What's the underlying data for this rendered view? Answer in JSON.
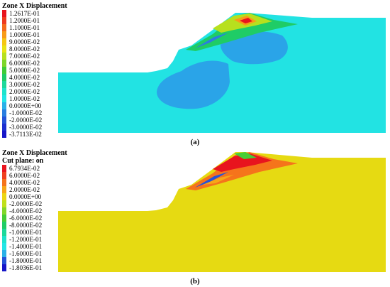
{
  "panel_a": {
    "title": "Zone X Displacement",
    "legend": [
      {
        "label": "1.2617E-01",
        "color": "#e8141e"
      },
      {
        "label": "1.2000E-01",
        "color": "#ee3a1f"
      },
      {
        "label": "1.1000E-01",
        "color": "#f46a1c"
      },
      {
        "label": "1.0000E-01",
        "color": "#f89b18"
      },
      {
        "label": "9.0000E-02",
        "color": "#f5c713"
      },
      {
        "label": "8.0000E-02",
        "color": "#e8e414"
      },
      {
        "label": "7.0000E-02",
        "color": "#b7e01e"
      },
      {
        "label": "6.0000E-02",
        "color": "#7ed62a"
      },
      {
        "label": "5.0000E-02",
        "color": "#3fcc37"
      },
      {
        "label": "4.0000E-02",
        "color": "#1fcc66"
      },
      {
        "label": "3.0000E-02",
        "color": "#1dd89b"
      },
      {
        "label": "2.0000E-02",
        "color": "#1ee3cc"
      },
      {
        "label": "1.0000E-02",
        "color": "#22e6e6"
      },
      {
        "label": "0.0000E+00",
        "color": "#2ab1e8"
      },
      {
        "label": "-1.0000E-02",
        "color": "#2a7ee0"
      },
      {
        "label": "-2.0000E-02",
        "color": "#2553d8"
      },
      {
        "label": "-3.0000E-02",
        "color": "#1c2fd0"
      },
      {
        "label": "-3.7113E-02",
        "color": "#1616c8"
      }
    ],
    "caption": "(a)"
  },
  "panel_b": {
    "title": "Zone X Displacement",
    "subtitle": "Cut plane: on",
    "legend": [
      {
        "label": "6.7934E-02",
        "color": "#e8141e"
      },
      {
        "label": "6.0000E-02",
        "color": "#ef401f"
      },
      {
        "label": "4.0000E-02",
        "color": "#f5741b"
      },
      {
        "label": "2.0000E-02",
        "color": "#f7a617"
      },
      {
        "label": "0.0000E+00",
        "color": "#ecd612"
      },
      {
        "label": "-2.0000E-02",
        "color": "#bfe01c"
      },
      {
        "label": "-4.0000E-02",
        "color": "#82d72a"
      },
      {
        "label": "-6.0000E-02",
        "color": "#45cd37"
      },
      {
        "label": "-8.0000E-02",
        "color": "#1fcc66"
      },
      {
        "label": "-1.0000E-01",
        "color": "#1dd89b"
      },
      {
        "label": "-1.2000E-01",
        "color": "#1ee3cc"
      },
      {
        "label": "-1.4000E-01",
        "color": "#22e6e6"
      },
      {
        "label": "-1.6000E-01",
        "color": "#2ab1e8"
      },
      {
        "label": "-1.8000E-01",
        "color": "#2553d8"
      },
      {
        "label": "-1.8036E-01",
        "color": "#1616c8"
      }
    ],
    "caption": "(b)"
  },
  "colors": {
    "background_a": "#22e3e3",
    "zone_a": "#2aa4e8",
    "background_b": "#e6da12"
  }
}
